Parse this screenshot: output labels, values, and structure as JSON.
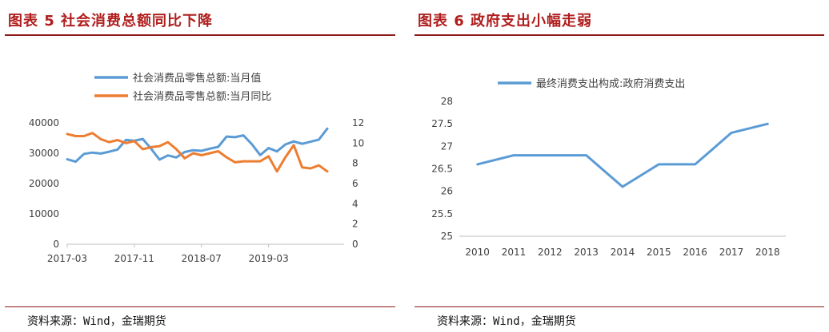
{
  "left": {
    "title": "图表 5 社会消费总额同比下降",
    "source": "资料来源：Wind，金瑞期货"
  },
  "right": {
    "title": "图表 6  政府支出小幅走弱",
    "source": "资料来源：Wind，金瑞期货"
  },
  "colors": {
    "blue": "#5b9bd5",
    "orange": "#ed7d31",
    "rule": "#8e1a1a",
    "title": "#b01e1e"
  },
  "chart_data": [
    {
      "type": "line",
      "dual_axis": true,
      "legend_position": "top",
      "grid": false,
      "x_tick_labels": [
        "2017-03",
        "2017-11",
        "2018-07",
        "2019-03"
      ],
      "y_left_ticks": [
        "0",
        "10000",
        "20000",
        "30000",
        "40000"
      ],
      "y_left_lim": [
        0,
        40000
      ],
      "y_right_ticks": [
        "0",
        "2",
        "4",
        "6",
        "8",
        "10",
        "12"
      ],
      "y_right_lim": [
        0,
        12
      ],
      "x": [
        "2017-03",
        "2017-04",
        "2017-05",
        "2017-06",
        "2017-07",
        "2017-08",
        "2017-09",
        "2017-10",
        "2017-11",
        "2017-12",
        "2018-01",
        "2018-02",
        "2018-03",
        "2018-04",
        "2018-05",
        "2018-06",
        "2018-07",
        "2018-08",
        "2018-09",
        "2018-10",
        "2018-11",
        "2018-12",
        "2019-01",
        "2019-02",
        "2019-03",
        "2019-04",
        "2019-05",
        "2019-06",
        "2019-07",
        "2019-08",
        "2019-09",
        "2019-10",
        "2019-11",
        "2019-12"
      ],
      "series": [
        {
          "name": "社会消费品零售总额:当月值",
          "axis": "left",
          "color": "#5b9bd5",
          "values": [
            28000,
            27200,
            29800,
            30200,
            29900,
            30500,
            31200,
            34400,
            34100,
            34700,
            31500,
            27900,
            29300,
            28600,
            30400,
            31000,
            30800,
            31500,
            32100,
            35500,
            35300,
            35900,
            33000,
            29400,
            31700,
            30600,
            32900,
            33900,
            33100,
            33800,
            34500,
            38100,
            null,
            null
          ]
        },
        {
          "name": "社会消费品零售总额:当月同比",
          "axis": "right",
          "color": "#ed7d31",
          "values": [
            10.9,
            10.7,
            10.7,
            11.0,
            10.4,
            10.1,
            10.3,
            10.0,
            10.2,
            9.4,
            9.6,
            9.7,
            10.1,
            9.4,
            8.5,
            9.0,
            8.8,
            9.0,
            9.2,
            8.6,
            8.1,
            8.2,
            8.2,
            8.2,
            8.7,
            7.2,
            8.6,
            9.8,
            7.6,
            7.5,
            7.8,
            7.2,
            null,
            null
          ]
        }
      ]
    },
    {
      "type": "line",
      "legend_position": "top",
      "grid": false,
      "x": [
        "2010",
        "2011",
        "2012",
        "2013",
        "2014",
        "2015",
        "2016",
        "2017",
        "2018"
      ],
      "y_ticks": [
        "25",
        "25.5",
        "26",
        "26.5",
        "27",
        "27.5",
        "28"
      ],
      "ylim": [
        25,
        28
      ],
      "series": [
        {
          "name": "最终消费支出构成:政府消费支出",
          "color": "#5b9bd5",
          "values": [
            26.6,
            26.8,
            26.8,
            26.8,
            26.1,
            26.6,
            26.6,
            27.3,
            27.5
          ]
        }
      ]
    }
  ]
}
